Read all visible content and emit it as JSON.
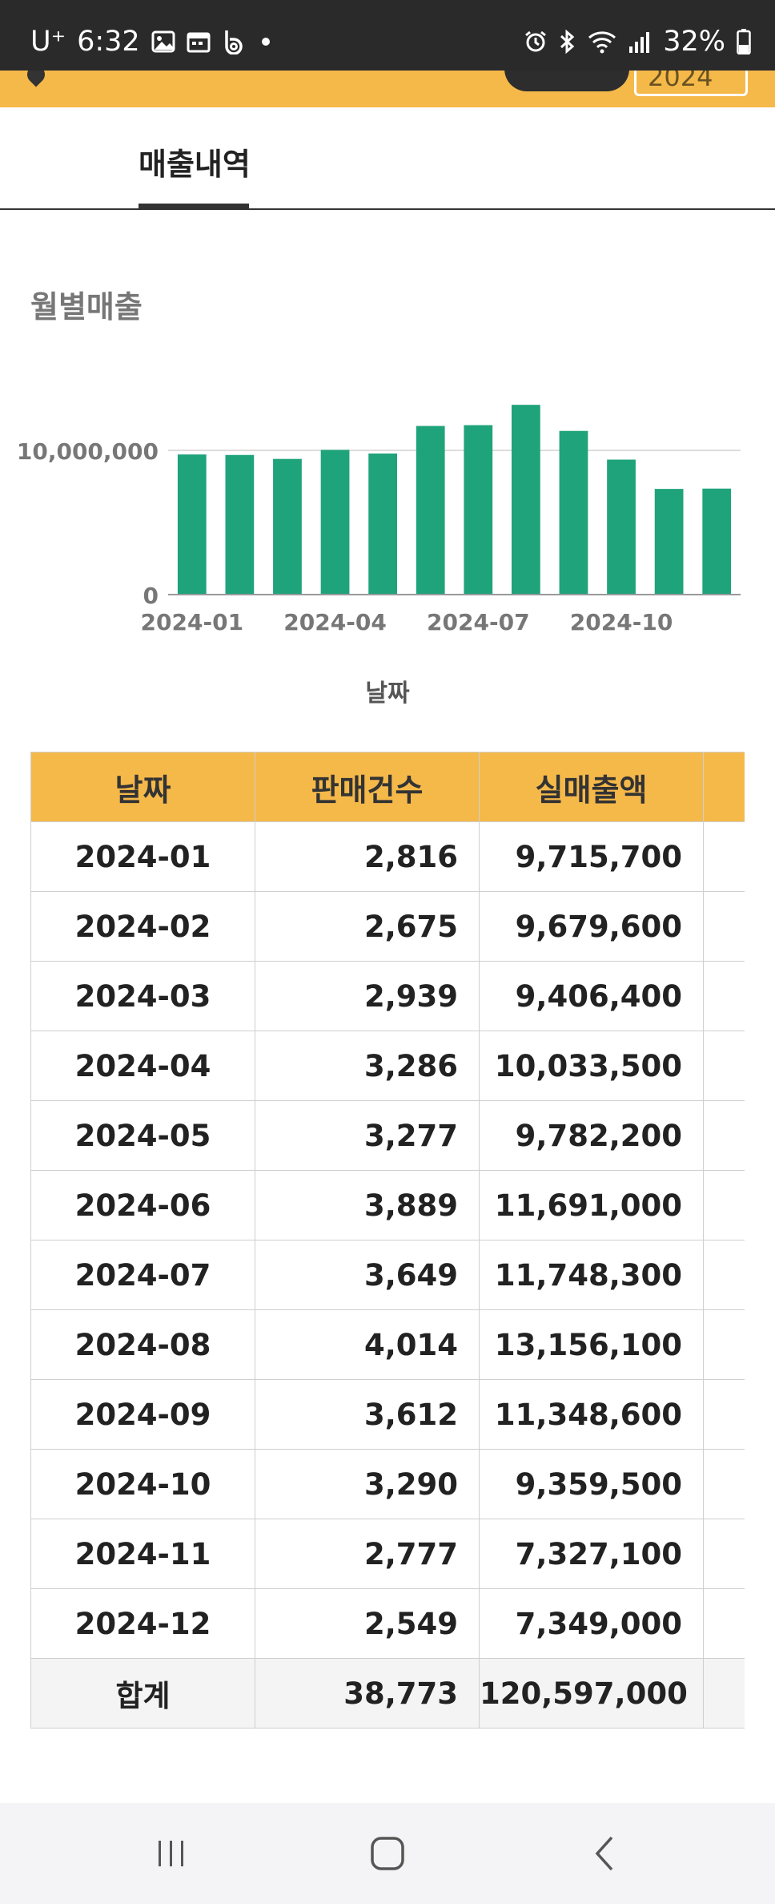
{
  "status_bar": {
    "carrier": "U⁺",
    "time": "6:32",
    "battery": "32%",
    "icons": [
      "gallery-icon",
      "calendar-icon",
      "b-app-icon",
      "alarm-icon",
      "bluetooth-icon",
      "wifi-icon",
      "signal-icon",
      "battery-icon"
    ]
  },
  "header": {
    "title_partial": "",
    "year_value": "2024"
  },
  "tabs": [
    {
      "label": "매출내역",
      "active": true
    }
  ],
  "section_title": "월별매출",
  "chart_data": {
    "type": "bar",
    "categories": [
      "2024-01",
      "2024-02",
      "2024-03",
      "2024-04",
      "2024-05",
      "2024-06",
      "2024-07",
      "2024-08",
      "2024-09",
      "2024-10",
      "2024-11",
      "2024-12"
    ],
    "values": [
      9715700,
      9679600,
      9406400,
      10033500,
      9782200,
      11691000,
      11748300,
      13156100,
      11348600,
      9359500,
      7327100,
      7349000
    ],
    "xlabel": "날짜",
    "ylabel": "",
    "ylim": [
      0,
      14000000
    ],
    "yticks": [
      0,
      10000000
    ],
    "ytick_labels": [
      "0",
      "10,000,000"
    ],
    "xtick_labels": [
      "2024-01",
      "",
      "",
      "2024-04",
      "",
      "",
      "2024-07",
      "",
      "",
      "2024-10",
      "",
      ""
    ],
    "grid": true,
    "bar_color": "#1fa37a"
  },
  "table": {
    "headers": [
      "날짜",
      "판매건수",
      "실매출액",
      ""
    ],
    "rows": [
      {
        "date": "2024-01",
        "count": "2,816",
        "sales": "9,715,700"
      },
      {
        "date": "2024-02",
        "count": "2,675",
        "sales": "9,679,600"
      },
      {
        "date": "2024-03",
        "count": "2,939",
        "sales": "9,406,400"
      },
      {
        "date": "2024-04",
        "count": "3,286",
        "sales": "10,033,500"
      },
      {
        "date": "2024-05",
        "count": "3,277",
        "sales": "9,782,200"
      },
      {
        "date": "2024-06",
        "count": "3,889",
        "sales": "11,691,000"
      },
      {
        "date": "2024-07",
        "count": "3,649",
        "sales": "11,748,300"
      },
      {
        "date": "2024-08",
        "count": "4,014",
        "sales": "13,156,100"
      },
      {
        "date": "2024-09",
        "count": "3,612",
        "sales": "11,348,600"
      },
      {
        "date": "2024-10",
        "count": "3,290",
        "sales": "9,359,500"
      },
      {
        "date": "2024-11",
        "count": "2,777",
        "sales": "7,327,100"
      },
      {
        "date": "2024-12",
        "count": "2,549",
        "sales": "7,349,000"
      }
    ],
    "total": {
      "label": "합계",
      "count": "38,773",
      "sales": "120,597,000"
    }
  },
  "nav": {
    "icons": [
      "recent-apps-icon",
      "home-icon",
      "back-icon"
    ]
  },
  "colors": {
    "accent": "#f5b94a",
    "bar": "#1fa37a",
    "status_bar": "#2a2a2a"
  }
}
